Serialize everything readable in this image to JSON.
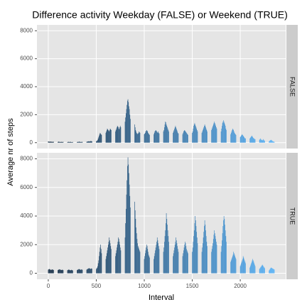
{
  "chart_data": {
    "type": "bar",
    "title": "Difference activity Weekday (FALSE) or Weekend (TRUE)",
    "xlabel": "Interval",
    "ylabel": "Average nr of steps",
    "color_scale": [
      "#132B43",
      "#56B1F7"
    ],
    "grid": true,
    "xlim": [
      -118,
      2473
    ],
    "ylim": [
      -420,
      8420
    ],
    "xticks": [
      0,
      500,
      1000,
      1500,
      2000
    ],
    "yticks": [
      0,
      2000,
      4000,
      6000,
      8000
    ],
    "x": [
      0,
      5,
      10,
      15,
      20,
      25,
      30,
      35,
      40,
      45,
      50,
      55,
      100,
      105,
      110,
      115,
      120,
      125,
      130,
      135,
      140,
      145,
      150,
      155,
      200,
      205,
      210,
      215,
      220,
      225,
      230,
      235,
      240,
      245,
      250,
      255,
      300,
      305,
      310,
      315,
      320,
      325,
      330,
      335,
      340,
      345,
      350,
      355,
      400,
      405,
      410,
      415,
      420,
      425,
      430,
      435,
      440,
      445,
      450,
      455,
      500,
      505,
      510,
      515,
      520,
      525,
      530,
      535,
      540,
      545,
      550,
      555,
      600,
      605,
      610,
      615,
      620,
      625,
      630,
      635,
      640,
      645,
      650,
      655,
      700,
      705,
      710,
      715,
      720,
      725,
      730,
      735,
      740,
      745,
      750,
      755,
      800,
      805,
      810,
      815,
      820,
      825,
      830,
      835,
      840,
      845,
      850,
      855,
      900,
      905,
      910,
      915,
      920,
      925,
      930,
      935,
      940,
      945,
      950,
      955,
      1000,
      1005,
      1010,
      1015,
      1020,
      1025,
      1030,
      1035,
      1040,
      1045,
      1050,
      1055,
      1100,
      1105,
      1110,
      1115,
      1120,
      1125,
      1130,
      1135,
      1140,
      1145,
      1150,
      1155,
      1200,
      1205,
      1210,
      1215,
      1220,
      1225,
      1230,
      1235,
      1240,
      1245,
      1250,
      1255,
      1300,
      1305,
      1310,
      1315,
      1320,
      1325,
      1330,
      1335,
      1340,
      1345,
      1350,
      1355,
      1400,
      1405,
      1410,
      1415,
      1420,
      1425,
      1430,
      1435,
      1440,
      1445,
      1450,
      1455,
      1500,
      1505,
      1510,
      1515,
      1520,
      1525,
      1530,
      1535,
      1540,
      1545,
      1550,
      1555,
      1600,
      1605,
      1610,
      1615,
      1620,
      1625,
      1630,
      1635,
      1640,
      1645,
      1650,
      1655,
      1700,
      1705,
      1710,
      1715,
      1720,
      1725,
      1730,
      1735,
      1740,
      1745,
      1750,
      1755,
      1800,
      1805,
      1810,
      1815,
      1820,
      1825,
      1830,
      1835,
      1840,
      1845,
      1850,
      1855,
      1900,
      1905,
      1910,
      1915,
      1920,
      1925,
      1930,
      1935,
      1940,
      1945,
      1950,
      1955,
      2000,
      2005,
      2010,
      2015,
      2020,
      2025,
      2030,
      2035,
      2040,
      2045,
      2050,
      2055,
      2100,
      2105,
      2110,
      2115,
      2120,
      2125,
      2130,
      2135,
      2140,
      2145,
      2150,
      2155,
      2200,
      2205,
      2210,
      2215,
      2220,
      2225,
      2230,
      2235,
      2240,
      2245,
      2250,
      2255,
      2300,
      2305,
      2310,
      2315,
      2320,
      2325,
      2330,
      2335,
      2340,
      2345,
      2350,
      2355
    ],
    "series": [
      {
        "name": "FALSE",
        "values": [
          90,
          80,
          70,
          70,
          60,
          80,
          70,
          60,
          50,
          60,
          70,
          60,
          50,
          60,
          70,
          60,
          50,
          40,
          50,
          60,
          50,
          40,
          50,
          60,
          40,
          50,
          60,
          50,
          40,
          50,
          60,
          50,
          40,
          30,
          40,
          50,
          40,
          50,
          60,
          50,
          60,
          70,
          60,
          50,
          40,
          50,
          60,
          50,
          60,
          70,
          80,
          90,
          100,
          90,
          80,
          100,
          110,
          120,
          100,
          90,
          100,
          120,
          150,
          200,
          300,
          400,
          500,
          600,
          700,
          650,
          600,
          550,
          700,
          800,
          900,
          1000,
          950,
          900,
          850,
          800,
          900,
          1000,
          950,
          900,
          800,
          900,
          1000,
          1100,
          1200,
          1150,
          1100,
          1000,
          950,
          1100,
          1200,
          1100,
          1500,
          1800,
          2100,
          2400,
          2700,
          3000,
          3100,
          2900,
          2600,
          2400,
          2000,
          1700,
          1300,
          1100,
          900,
          800,
          700,
          650,
          600,
          650,
          700,
          800,
          750,
          700,
          600,
          650,
          700,
          800,
          850,
          900,
          850,
          800,
          700,
          650,
          600,
          550,
          600,
          700,
          800,
          850,
          900,
          850,
          800,
          700,
          750,
          800,
          700,
          650,
          800,
          900,
          1100,
          1300,
          1500,
          1450,
          1300,
          1200,
          1100,
          1000,
          900,
          800,
          700,
          800,
          900,
          1000,
          1100,
          1200,
          1100,
          1000,
          900,
          800,
          700,
          650,
          600,
          700,
          800,
          850,
          900,
          850,
          800,
          750,
          700,
          650,
          600,
          550,
          700,
          800,
          1000,
          1200,
          1300,
          1400,
          1300,
          1200,
          1100,
          1000,
          900,
          800,
          700,
          800,
          900,
          1000,
          1100,
          1200,
          1300,
          1200,
          1100,
          1000,
          900,
          800,
          900,
          1000,
          1100,
          1200,
          1300,
          1400,
          1500,
          1400,
          1300,
          1200,
          1100,
          1000,
          800,
          1000,
          1200,
          1400,
          1500,
          1600,
          1500,
          1400,
          1300,
          1200,
          1000,
          900,
          600,
          700,
          800,
          900,
          1000,
          950,
          900,
          800,
          700,
          650,
          600,
          550,
          400,
          450,
          500,
          550,
          600,
          550,
          500,
          450,
          400,
          350,
          300,
          300,
          300,
          350,
          400,
          450,
          500,
          450,
          400,
          350,
          300,
          300,
          250,
          250,
          200,
          250,
          300,
          250,
          200,
          180,
          160,
          200,
          250,
          200,
          150,
          120,
          100,
          120,
          150,
          180,
          200,
          180,
          150,
          120,
          100,
          80,
          70,
          60
        ]
      },
      {
        "name": "TRUE",
        "values": [
          250,
          280,
          300,
          280,
          260,
          240,
          230,
          250,
          270,
          260,
          240,
          230,
          220,
          240,
          260,
          280,
          270,
          250,
          240,
          220,
          230,
          250,
          240,
          220,
          210,
          230,
          250,
          260,
          240,
          220,
          200,
          220,
          240,
          230,
          210,
          200,
          220,
          240,
          260,
          280,
          300,
          280,
          260,
          240,
          250,
          270,
          260,
          240,
          250,
          280,
          300,
          320,
          340,
          360,
          340,
          320,
          300,
          320,
          340,
          320,
          300,
          350,
          400,
          500,
          700,
          900,
          1200,
          1500,
          1800,
          2000,
          1700,
          1400,
          1000,
          1200,
          1400,
          1600,
          1800,
          2000,
          2200,
          2500,
          2300,
          2100,
          1900,
          1700,
          1200,
          1400,
          1600,
          1800,
          2000,
          2200,
          2500,
          2400,
          2200,
          2000,
          1800,
          1600,
          2500,
          3500,
          4500,
          5500,
          6500,
          7500,
          8100,
          7600,
          7000,
          6200,
          5400,
          4600,
          5000,
          4400,
          3800,
          3200,
          2800,
          2400,
          2100,
          1900,
          1800,
          1700,
          1600,
          1500,
          1000,
          1200,
          1400,
          1600,
          1800,
          2000,
          1900,
          1700,
          1500,
          1300,
          1200,
          1100,
          1000,
          1200,
          1400,
          1600,
          1800,
          2000,
          2200,
          2500,
          2300,
          2100,
          1900,
          1700,
          1500,
          1800,
          2200,
          2600,
          3000,
          3500,
          4200,
          3800,
          3400,
          3000,
          2600,
          2200,
          1200,
          1400,
          1600,
          1800,
          2000,
          2200,
          2500,
          2300,
          2100,
          1900,
          1700,
          1500,
          1200,
          1400,
          1600,
          1800,
          2000,
          2200,
          2100,
          1900,
          1700,
          1600,
          1500,
          1400,
          1500,
          1800,
          2200,
          2600,
          3000,
          3500,
          4000,
          3700,
          3300,
          2900,
          2500,
          2100,
          1500,
          1800,
          2100,
          2500,
          2900,
          3300,
          3700,
          3400,
          3000,
          2600,
          2200,
          1900,
          1500,
          1700,
          1900,
          2100,
          2400,
          2700,
          3000,
          2800,
          2600,
          2400,
          2200,
          2000,
          1500,
          1900,
          2300,
          2800,
          3300,
          3700,
          4000,
          3800,
          3400,
          3000,
          2600,
          2200,
          800,
          900,
          1000,
          1100,
          1200,
          1300,
          1500,
          1400,
          1300,
          1200,
          1100,
          1000,
          500,
          600,
          700,
          800,
          900,
          1000,
          1200,
          1100,
          1000,
          900,
          800,
          700,
          400,
          500,
          600,
          700,
          800,
          900,
          1000,
          900,
          800,
          700,
          600,
          500,
          300,
          350,
          400,
          450,
          500,
          550,
          600,
          550,
          500,
          450,
          400,
          350,
          200,
          250,
          300,
          350,
          400,
          380,
          360,
          340,
          320,
          300,
          280,
          260
        ]
      }
    ]
  }
}
